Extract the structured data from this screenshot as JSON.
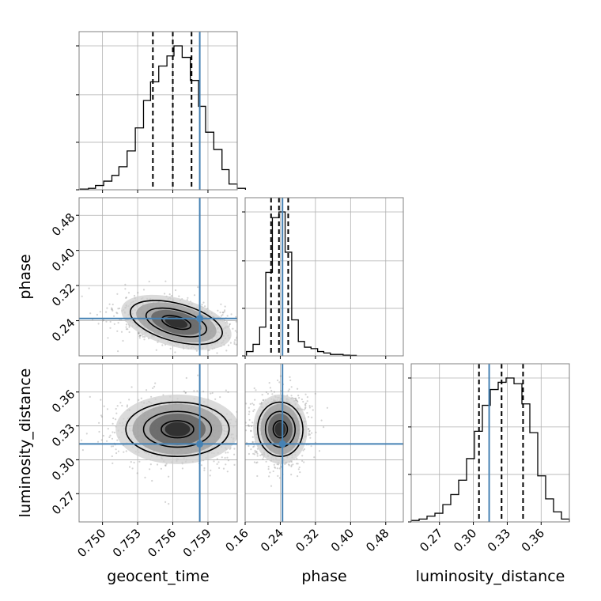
{
  "chart_data": {
    "type": "corner",
    "parameters": [
      "geocent_time",
      "phase",
      "luminosity_distance"
    ],
    "axis_labels": {
      "geocent_time": "geocent_time",
      "phase": "phase",
      "luminosity_distance": "luminosity_distance"
    },
    "ranges": {
      "geocent_time": [
        0.748,
        0.7615
      ],
      "phase": [
        0.16,
        0.52
      ],
      "luminosity_distance": [
        0.245,
        0.385
      ]
    },
    "ticks": {
      "geocent_time": {
        "values": [
          0.75,
          0.753,
          0.756,
          0.759
        ],
        "labels": [
          "0.750",
          "0.753",
          "0.756",
          "0.759"
        ]
      },
      "phase": {
        "values": [
          0.16,
          0.24,
          0.32,
          0.4,
          0.48
        ],
        "labels": [
          "0.16",
          "0.24",
          "0.32",
          "0.40",
          "0.48"
        ]
      },
      "phase_y": {
        "values": [
          0.24,
          0.32,
          0.4,
          0.48
        ],
        "labels": [
          "0.24",
          "0.32",
          "0.40",
          "0.48"
        ]
      },
      "luminosity_distance": {
        "values": [
          0.27,
          0.3,
          0.33,
          0.36
        ],
        "labels": [
          "0.27",
          "0.30",
          "0.33",
          "0.36"
        ]
      },
      "luminosity_distance_y": {
        "values": [
          0.27,
          0.3,
          0.33,
          0.36
        ],
        "labels": [
          "0.27",
          "0.30",
          "0.33",
          "0.36"
        ]
      }
    },
    "truths": {
      "geocent_time": 0.7583,
      "phase": 0.245,
      "luminosity_distance": 0.314
    },
    "quantiles": {
      "geocent_time": [
        0.7543,
        0.756,
        0.7576
      ],
      "phase": [
        0.219,
        0.237,
        0.258
      ],
      "luminosity_distance": [
        0.305,
        0.325,
        0.344
      ]
    },
    "histograms": {
      "geocent_time": [
        [
          0.7481,
          0.7488,
          0.005
        ],
        [
          0.7488,
          0.7494,
          0.01
        ],
        [
          0.7494,
          0.7501,
          0.03
        ],
        [
          0.7501,
          0.7508,
          0.06
        ],
        [
          0.7508,
          0.7514,
          0.1
        ],
        [
          0.7514,
          0.7521,
          0.16
        ],
        [
          0.7521,
          0.7528,
          0.27
        ],
        [
          0.7528,
          0.7535,
          0.43
        ],
        [
          0.7535,
          0.7541,
          0.62
        ],
        [
          0.7541,
          0.7548,
          0.75
        ],
        [
          0.7548,
          0.7555,
          0.86
        ],
        [
          0.7555,
          0.7561,
          0.93
        ],
        [
          0.7561,
          0.7568,
          1.0
        ],
        [
          0.7568,
          0.7575,
          0.92
        ],
        [
          0.7575,
          0.7582,
          0.76
        ],
        [
          0.7582,
          0.7588,
          0.58
        ],
        [
          0.7588,
          0.7595,
          0.4
        ],
        [
          0.7595,
          0.7602,
          0.28
        ],
        [
          0.7602,
          0.7608,
          0.14
        ],
        [
          0.7608,
          0.7615,
          0.04
        ],
        [
          0.7615,
          0.7622,
          0.01
        ]
      ],
      "phase": [
        [
          0.163,
          0.178,
          0.03
        ],
        [
          0.178,
          0.193,
          0.08
        ],
        [
          0.193,
          0.207,
          0.2
        ],
        [
          0.207,
          0.222,
          0.58
        ],
        [
          0.222,
          0.237,
          0.96
        ],
        [
          0.237,
          0.251,
          1.0
        ],
        [
          0.251,
          0.266,
          0.72
        ],
        [
          0.266,
          0.281,
          0.25
        ],
        [
          0.281,
          0.295,
          0.1
        ],
        [
          0.295,
          0.31,
          0.06
        ],
        [
          0.31,
          0.325,
          0.05
        ],
        [
          0.325,
          0.339,
          0.03
        ],
        [
          0.339,
          0.354,
          0.02
        ],
        [
          0.354,
          0.369,
          0.01
        ],
        [
          0.369,
          0.383,
          0.01
        ],
        [
          0.383,
          0.398,
          0.005
        ],
        [
          0.398,
          0.413,
          0.003
        ]
      ],
      "luminosity_distance": [
        [
          0.245,
          0.252,
          0.01
        ],
        [
          0.252,
          0.259,
          0.02
        ],
        [
          0.259,
          0.266,
          0.04
        ],
        [
          0.266,
          0.273,
          0.06
        ],
        [
          0.273,
          0.28,
          0.12
        ],
        [
          0.28,
          0.287,
          0.19
        ],
        [
          0.287,
          0.294,
          0.29
        ],
        [
          0.294,
          0.301,
          0.44
        ],
        [
          0.301,
          0.308,
          0.63
        ],
        [
          0.308,
          0.315,
          0.81
        ],
        [
          0.315,
          0.322,
          0.92
        ],
        [
          0.322,
          0.329,
          0.97
        ],
        [
          0.329,
          0.336,
          1.0
        ],
        [
          0.336,
          0.343,
          0.96
        ],
        [
          0.343,
          0.35,
          0.82
        ],
        [
          0.35,
          0.357,
          0.62
        ],
        [
          0.357,
          0.364,
          0.32
        ],
        [
          0.364,
          0.371,
          0.16
        ],
        [
          0.371,
          0.378,
          0.07
        ],
        [
          0.378,
          0.385,
          0.02
        ]
      ]
    },
    "contour_pairs": [
      {
        "x": "geocent_time",
        "y": "phase",
        "center": [
          0.7563,
          0.236
        ],
        "sigma": [
          0.0022,
          0.025
        ],
        "rho": -0.3
      },
      {
        "x": "geocent_time",
        "y": "luminosity_distance",
        "center": [
          0.7564,
          0.327
        ],
        "sigma": [
          0.0024,
          0.014
        ],
        "rho": 0.0
      },
      {
        "x": "phase",
        "y": "luminosity_distance",
        "center": [
          0.24,
          0.327
        ],
        "sigma": [
          0.028,
          0.014
        ],
        "rho": 0.05
      }
    ],
    "contour_levels": [
      0.39,
      0.86,
      0.99
    ],
    "colors": {
      "truth": "#4682b4",
      "hist": "#000000",
      "scatter": "#808080",
      "grid": "#b0b0b0",
      "frame": "#808080"
    },
    "grid": true
  }
}
